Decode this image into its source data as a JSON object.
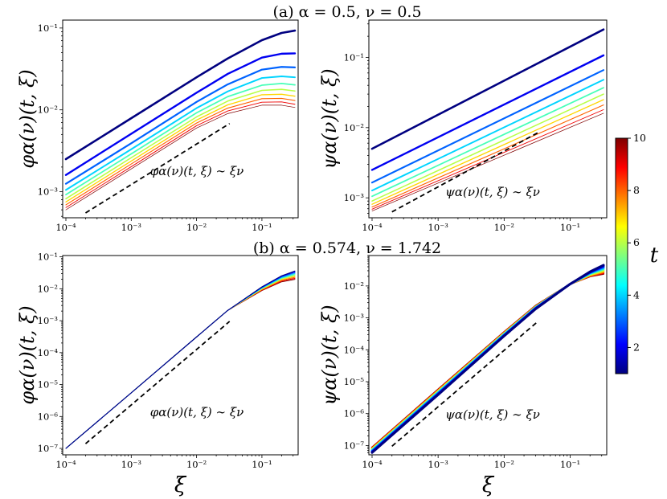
{
  "titles": {
    "a": "(a) α = 0.5, ν = 0.5",
    "b": "(b) α = 0.574, ν = 1.742"
  },
  "x_axis_label": "ξ",
  "x_tick_labels": [
    "10⁻⁴",
    "10⁻³",
    "10⁻²",
    "10⁻¹"
  ],
  "colorbar": {
    "label": "t",
    "range": [
      1,
      10
    ],
    "ticks": [
      2,
      4,
      6,
      8,
      10
    ],
    "colormap": "jet",
    "stops": [
      "#00007f",
      "#0000ff",
      "#007fff",
      "#00ffff",
      "#7fff7f",
      "#ffff00",
      "#ff7f00",
      "#ff0000",
      "#7f0000"
    ]
  },
  "chart_data": [
    {
      "type": "line",
      "id": "a1",
      "scale": "log-log",
      "ylabel": "φα(ν)(t, ξ)",
      "xlabel": "",
      "xlim": [
        0.0001,
        0.32
      ],
      "ylim": [
        0.00048,
        0.125
      ],
      "y_tick_labels": [
        "10⁻³",
        "10⁻²",
        "10⁻¹"
      ],
      "t_values": [
        1,
        2,
        3,
        4,
        5,
        6,
        7,
        8,
        9,
        10
      ],
      "series_x": [
        0.0001,
        0.001,
        0.01,
        0.03,
        0.1,
        0.2,
        0.32
      ],
      "series": [
        {
          "name": "t=1",
          "values": [
            0.0025,
            0.0079,
            0.025,
            0.0425,
            0.071,
            0.087,
            0.093
          ]
        },
        {
          "name": "t=2",
          "values": [
            0.0016,
            0.0051,
            0.0162,
            0.0275,
            0.0435,
            0.0485,
            0.049
          ]
        },
        {
          "name": "t=3",
          "values": [
            0.00125,
            0.0039,
            0.0125,
            0.0205,
            0.031,
            0.0335,
            0.033
          ]
        },
        {
          "name": "t=4",
          "values": [
            0.00105,
            0.0033,
            0.0105,
            0.0168,
            0.0245,
            0.0257,
            0.025
          ]
        },
        {
          "name": "t=5",
          "values": [
            0.00092,
            0.0029,
            0.0092,
            0.0145,
            0.02,
            0.021,
            0.0202
          ]
        },
        {
          "name": "t=6",
          "values": [
            0.00082,
            0.0026,
            0.0082,
            0.0128,
            0.0173,
            0.0178,
            0.017
          ]
        },
        {
          "name": "t=7",
          "values": [
            0.00075,
            0.00237,
            0.0075,
            0.0115,
            0.0153,
            0.0155,
            0.0147
          ]
        },
        {
          "name": "t=8",
          "values": [
            0.00069,
            0.00218,
            0.0069,
            0.0105,
            0.0137,
            0.0138,
            0.013
          ]
        },
        {
          "name": "t=9",
          "values": [
            0.00064,
            0.00202,
            0.0064,
            0.0097,
            0.0124,
            0.0125,
            0.0117
          ]
        },
        {
          "name": "t=10",
          "values": [
            0.0006,
            0.0019,
            0.006,
            0.009,
            0.0114,
            0.0114,
            0.0107
          ]
        }
      ],
      "guide": {
        "label": "φα(ν)(t, ξ) ∼ ξν",
        "x": [
          0.0002,
          0.032
        ],
        "y": [
          0.00055,
          0.0068
        ]
      }
    },
    {
      "type": "line",
      "id": "a2",
      "scale": "log-log",
      "ylabel": "ψα(ν)(t, ξ)",
      "xlabel": "",
      "xlim": [
        0.0001,
        0.32
      ],
      "ylim": [
        0.00052,
        0.34
      ],
      "y_tick_labels": [
        "10⁻³",
        "10⁻²",
        "10⁻¹"
      ],
      "t_values": [
        1,
        2,
        3,
        4,
        5,
        6,
        7,
        8,
        9,
        10
      ],
      "series_x": [
        0.0001,
        0.32
      ],
      "series": [
        {
          "name": "t=1",
          "values": [
            0.005,
            0.25
          ]
        },
        {
          "name": "t=2",
          "values": [
            0.0025,
            0.107
          ]
        },
        {
          "name": "t=3",
          "values": [
            0.00165,
            0.066
          ]
        },
        {
          "name": "t=4",
          "values": [
            0.00127,
            0.048
          ]
        },
        {
          "name": "t=5",
          "values": [
            0.00105,
            0.037
          ]
        },
        {
          "name": "t=6",
          "values": [
            0.0009,
            0.03
          ]
        },
        {
          "name": "t=7",
          "values": [
            0.00081,
            0.025
          ]
        },
        {
          "name": "t=8",
          "values": [
            0.00074,
            0.021
          ]
        },
        {
          "name": "t=9",
          "values": [
            0.00069,
            0.018
          ]
        },
        {
          "name": "t=10",
          "values": [
            0.00065,
            0.016
          ]
        }
      ],
      "guide": {
        "label": "ψα(ν)(t, ξ) ∼ ξν",
        "x": [
          0.0002,
          0.032
        ],
        "y": [
          0.00063,
          0.0084
        ]
      }
    },
    {
      "type": "line",
      "id": "b1",
      "scale": "log-log",
      "ylabel": "φα(ν)(t, ξ)",
      "xlabel": "ξ",
      "xlim": [
        0.0001,
        0.32
      ],
      "ylim": [
        6.3e-08,
        0.11
      ],
      "y_tick_labels": [
        "10⁻⁷",
        "10⁻⁶",
        "10⁻⁵",
        "10⁻⁴",
        "10⁻³",
        "10⁻²",
        "10⁻¹"
      ],
      "t_values": [
        1,
        2,
        3,
        4,
        5,
        6,
        7,
        8,
        9,
        10
      ],
      "series_x": [
        0.0001,
        0.001,
        0.01,
        0.03,
        0.1,
        0.2,
        0.32
      ],
      "series": [
        {
          "name": "t=1",
          "values": [
            1e-07,
            5.5e-06,
            0.00031,
            0.0021,
            0.0115,
            0.0255,
            0.036
          ]
        },
        {
          "name": "t=2",
          "values": [
            1e-07,
            5.5e-06,
            0.00031,
            0.0021,
            0.0112,
            0.0245,
            0.034
          ]
        },
        {
          "name": "t=3",
          "values": [
            1e-07,
            5.5e-06,
            0.00031,
            0.0021,
            0.0109,
            0.0234,
            0.032
          ]
        },
        {
          "name": "t=4",
          "values": [
            1e-07,
            5.5e-06,
            0.00031,
            0.0021,
            0.0106,
            0.0224,
            0.03
          ]
        },
        {
          "name": "t=5",
          "values": [
            1e-07,
            5.5e-06,
            0.00031,
            0.0021,
            0.0103,
            0.0214,
            0.028
          ]
        },
        {
          "name": "t=6",
          "values": [
            1e-07,
            5.5e-06,
            0.00031,
            0.0021,
            0.01,
            0.0204,
            0.0262
          ]
        },
        {
          "name": "t=7",
          "values": [
            1e-07,
            5.5e-06,
            0.00031,
            0.0021,
            0.0097,
            0.0194,
            0.0245
          ]
        },
        {
          "name": "t=8",
          "values": [
            1e-07,
            5.5e-06,
            0.00031,
            0.0021,
            0.0094,
            0.0184,
            0.0228
          ]
        },
        {
          "name": "t=9",
          "values": [
            1e-07,
            5.5e-06,
            0.00031,
            0.0021,
            0.0091,
            0.0174,
            0.0212
          ]
        },
        {
          "name": "t=10",
          "values": [
            1e-07,
            5.5e-06,
            0.00031,
            0.0021,
            0.0088,
            0.0165,
            0.0198
          ]
        }
      ],
      "guide": {
        "label": "φα(ν)(t, ξ) ∼ ξν",
        "x": [
          0.0002,
          0.032
        ],
        "y": [
          1.4e-07,
          0.00095
        ]
      }
    },
    {
      "type": "line",
      "id": "b2",
      "scale": "log-log",
      "ylabel": "ψα(ν)(t, ξ)",
      "xlabel": "ξ",
      "xlim": [
        0.0001,
        0.32
      ],
      "ylim": [
        5.1e-08,
        0.09
      ],
      "y_tick_labels": [
        "10⁻⁷",
        "10⁻⁶",
        "10⁻⁵",
        "10⁻⁴",
        "10⁻³",
        "10⁻²"
      ],
      "t_values": [
        1,
        2,
        3,
        4,
        5,
        6,
        7,
        8,
        9,
        10
      ],
      "series_x": [
        0.0001,
        0.001,
        0.01,
        0.03,
        0.1,
        0.2,
        0.32
      ],
      "series": [
        {
          "name": "t=1",
          "values": [
            6e-08,
            3.9e-06,
            0.00027,
            0.0019,
            0.0115,
            0.028,
            0.045
          ]
        },
        {
          "name": "t=2",
          "values": [
            6.3e-08,
            4.1e-06,
            0.00028,
            0.002,
            0.0115,
            0.027,
            0.042
          ]
        },
        {
          "name": "t=3",
          "values": [
            6.6e-08,
            4.3e-06,
            0.00029,
            0.002,
            0.0115,
            0.026,
            0.039
          ]
        },
        {
          "name": "t=4",
          "values": [
            6.9e-08,
            4.5e-06,
            0.0003,
            0.0021,
            0.0115,
            0.025,
            0.036
          ]
        },
        {
          "name": "t=5",
          "values": [
            7.2e-08,
            4.7e-06,
            0.00031,
            0.0021,
            0.0115,
            0.024,
            0.0335
          ]
        },
        {
          "name": "t=6",
          "values": [
            7.5e-08,
            4.9e-06,
            0.00032,
            0.0022,
            0.0115,
            0.023,
            0.031
          ]
        },
        {
          "name": "t=7",
          "values": [
            7.8e-08,
            5.1e-06,
            0.00033,
            0.0022,
            0.0115,
            0.022,
            0.029
          ]
        },
        {
          "name": "t=8",
          "values": [
            8.1e-08,
            5.3e-06,
            0.00034,
            0.0023,
            0.0115,
            0.021,
            0.027
          ]
        },
        {
          "name": "t=9",
          "values": [
            8.4e-08,
            5.5e-06,
            0.00035,
            0.0023,
            0.0115,
            0.0205,
            0.0255
          ]
        },
        {
          "name": "t=10",
          "values": [
            8.7e-08,
            5.7e-06,
            0.00036,
            0.0024,
            0.0115,
            0.02,
            0.024
          ]
        }
      ],
      "guide": {
        "label": "ψα(ν)(t, ξ) ∼ ξν",
        "x": [
          0.0002,
          0.032
        ],
        "y": [
          9.5e-08,
          0.00075
        ]
      }
    }
  ]
}
